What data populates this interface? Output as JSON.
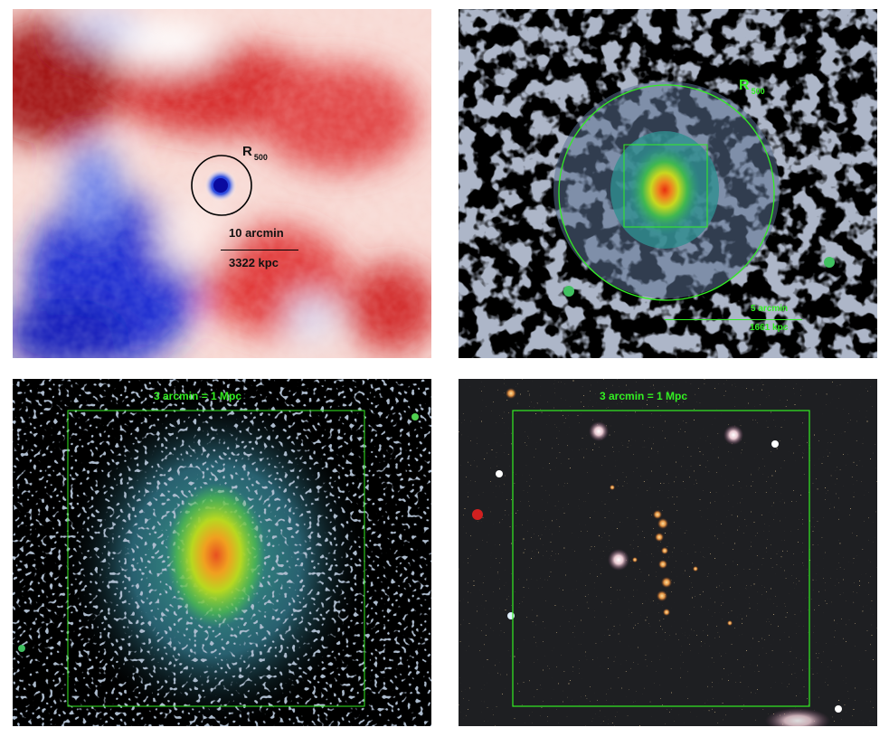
{
  "panels": {
    "sz_map": {
      "r500_main": "R",
      "r500_sub": "500",
      "scale_angle": "10 arcmin",
      "scale_distance": "3322 kpc"
    },
    "xray_wide": {
      "r500_main": "R",
      "r500_sub": "500",
      "scale_angle": "5 arcmin",
      "scale_distance": "1661 kpc"
    },
    "xray_zoom": {
      "scale_label": "3 arcmin = 1 Mpc"
    },
    "optical": {
      "scale_label": "3 arcmin = 1 Mpc"
    }
  },
  "colors": {
    "overlay_green": "#33ee22",
    "sz_red": "#d42020",
    "sz_blue": "#1030d0",
    "xray_background": "#000000",
    "optical_background": "#1e1f22"
  }
}
